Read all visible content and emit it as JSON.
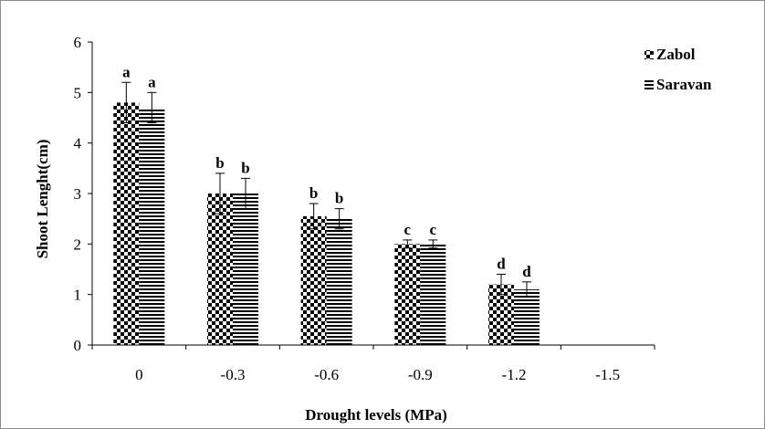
{
  "chart_data": {
    "type": "bar",
    "title": "",
    "xlabel": "Drought levels (MPa)",
    "ylabel": "Shoot Lenght(cm)",
    "categories": [
      "0",
      "-0.3",
      "-0.6",
      "-0.9",
      "-1.2",
      "-1.5"
    ],
    "ylim": [
      0,
      6
    ],
    "yticks": [
      0,
      1,
      2,
      3,
      4,
      5,
      6
    ],
    "grid": false,
    "legend_position": "top-right",
    "series": [
      {
        "name": "Zabol",
        "pattern": "checkerboard",
        "values": [
          4.8,
          3.0,
          2.55,
          2.0,
          1.2,
          null
        ],
        "errors": [
          0.4,
          0.4,
          0.25,
          0.08,
          0.2,
          null
        ],
        "labels": [
          "a",
          "b",
          "b",
          "c",
          "d",
          ""
        ]
      },
      {
        "name": "Saravan",
        "pattern": "horizontal-stripes",
        "values": [
          4.7,
          3.0,
          2.5,
          2.0,
          1.1,
          null
        ],
        "errors": [
          0.3,
          0.3,
          0.2,
          0.08,
          0.15,
          null
        ],
        "labels": [
          "a",
          "b",
          "b",
          "c",
          "d",
          ""
        ]
      }
    ]
  }
}
